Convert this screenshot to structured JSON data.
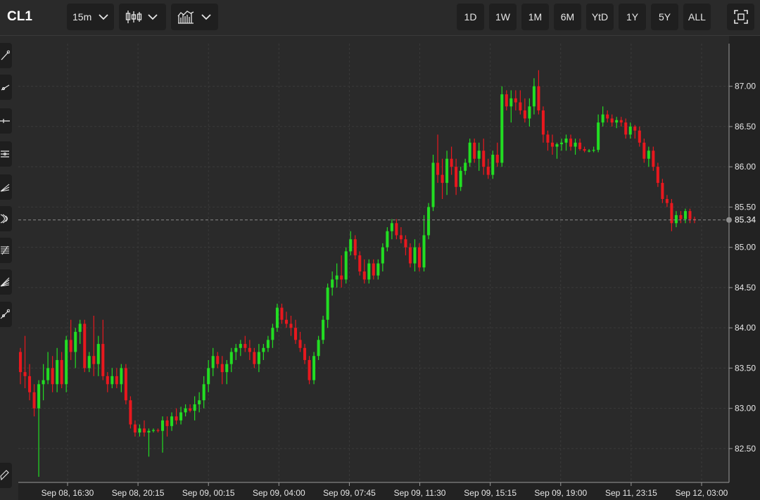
{
  "symbol": "CL1",
  "toolbar": {
    "interval_label": "15m",
    "chart_type_icon": "candlestick-icon",
    "indicators_icon": "indicators-icon",
    "fullscreen_icon": "fullscreen-icon"
  },
  "ranges": [
    "1D",
    "1W",
    "1M",
    "6M",
    "YtD",
    "1Y",
    "5Y",
    "ALL"
  ],
  "drawing_tools": [
    "trend-line-icon",
    "ray-icon",
    "horizontal-line-icon",
    "parallel-channel-icon",
    "pitchfork-icon",
    "fibonacci-arc-icon",
    "fibonacci-retracement-icon",
    "fibonacci-fan-icon",
    "gann-icon",
    "measure-icon"
  ],
  "colors": {
    "up": "#22dd22",
    "down": "#e8181e",
    "background": "#2a2a2a",
    "grid": "#3a3a3a",
    "price_line": "#8a8a8a"
  },
  "chart_data": {
    "type": "candlestick",
    "interval": "15m",
    "last_price": "85.34",
    "y_ticks": [
      "87.00",
      "86.50",
      "86.00",
      "85.50",
      "85.00",
      "84.50",
      "84.00",
      "83.50",
      "83.00",
      "82.50"
    ],
    "x_ticks": [
      "Sep 08, 16:30",
      "Sep 08, 20:15",
      "Sep 09, 00:15",
      "Sep 09, 04:00",
      "Sep 09, 07:45",
      "Sep 09, 11:30",
      "Sep 09, 15:15",
      "Sep 09, 19:00",
      "Sep 11, 23:15",
      "Sep 12, 03:00"
    ],
    "ylim": [
      82.08,
      87.53
    ],
    "candles": [
      [
        83.7,
        83.75,
        83.3,
        83.45
      ],
      [
        83.45,
        83.9,
        83.25,
        83.4
      ],
      [
        83.4,
        83.55,
        83.1,
        83.2
      ],
      [
        83.2,
        83.3,
        82.9,
        83.0
      ],
      [
        83.0,
        83.35,
        82.15,
        83.3
      ],
      [
        83.3,
        83.55,
        83.1,
        83.35
      ],
      [
        83.35,
        83.7,
        83.3,
        83.5
      ],
      [
        83.5,
        83.65,
        83.2,
        83.3
      ],
      [
        83.3,
        83.75,
        83.2,
        83.6
      ],
      [
        83.6,
        83.7,
        83.25,
        83.3
      ],
      [
        83.3,
        83.9,
        83.2,
        83.85
      ],
      [
        83.85,
        84.1,
        83.6,
        83.7
      ],
      [
        83.7,
        84.0,
        83.5,
        83.95
      ],
      [
        83.95,
        84.1,
        83.8,
        84.05
      ],
      [
        84.05,
        84.1,
        83.45,
        83.5
      ],
      [
        83.5,
        83.7,
        83.45,
        83.65
      ],
      [
        83.65,
        84.15,
        83.4,
        83.55
      ],
      [
        83.55,
        83.9,
        83.4,
        83.8
      ],
      [
        83.8,
        84.1,
        83.35,
        83.4
      ],
      [
        83.4,
        83.45,
        83.2,
        83.3
      ],
      [
        83.3,
        83.5,
        83.25,
        83.4
      ],
      [
        83.4,
        83.5,
        83.25,
        83.3
      ],
      [
        83.3,
        83.55,
        83.2,
        83.5
      ],
      [
        83.5,
        83.55,
        83.05,
        83.1
      ],
      [
        83.1,
        83.15,
        82.75,
        82.8
      ],
      [
        82.8,
        82.85,
        82.65,
        82.7
      ],
      [
        82.7,
        82.8,
        82.65,
        82.75
      ],
      [
        82.75,
        82.85,
        82.65,
        82.7
      ],
      [
        82.7,
        82.75,
        82.4,
        82.72
      ],
      [
        82.72,
        82.75,
        82.7,
        82.73
      ],
      [
        82.73,
        82.75,
        82.7,
        82.72
      ],
      [
        82.72,
        82.9,
        82.45,
        82.85
      ],
      [
        82.85,
        82.9,
        82.65,
        82.78
      ],
      [
        82.78,
        82.95,
        82.72,
        82.9
      ],
      [
        82.9,
        83.0,
        82.8,
        82.85
      ],
      [
        82.85,
        83.02,
        82.8,
        82.95
      ],
      [
        82.95,
        83.05,
        82.9,
        83.0
      ],
      [
        83.0,
        83.05,
        82.95,
        82.97
      ],
      [
        82.97,
        83.15,
        82.85,
        83.05
      ],
      [
        83.05,
        83.2,
        82.95,
        83.1
      ],
      [
        83.1,
        83.4,
        83.0,
        83.3
      ],
      [
        83.3,
        83.6,
        83.2,
        83.5
      ],
      [
        83.5,
        83.75,
        83.4,
        83.65
      ],
      [
        83.65,
        83.7,
        83.5,
        83.55
      ],
      [
        83.55,
        83.65,
        83.3,
        83.45
      ],
      [
        83.45,
        83.6,
        83.3,
        83.55
      ],
      [
        83.55,
        83.75,
        83.45,
        83.7
      ],
      [
        83.7,
        83.8,
        83.6,
        83.75
      ],
      [
        83.75,
        83.85,
        83.65,
        83.8
      ],
      [
        83.8,
        83.9,
        83.7,
        83.75
      ],
      [
        83.75,
        83.85,
        83.6,
        83.7
      ],
      [
        83.7,
        83.75,
        83.5,
        83.55
      ],
      [
        83.55,
        83.8,
        83.45,
        83.7
      ],
      [
        83.7,
        83.8,
        83.6,
        83.75
      ],
      [
        83.75,
        83.9,
        83.7,
        83.85
      ],
      [
        83.85,
        84.05,
        83.75,
        84.0
      ],
      [
        84.0,
        84.3,
        83.95,
        84.25
      ],
      [
        84.25,
        84.3,
        84.05,
        84.1
      ],
      [
        84.1,
        84.2,
        84.0,
        84.05
      ],
      [
        84.05,
        84.15,
        83.9,
        84.0
      ],
      [
        84.0,
        84.1,
        83.8,
        83.85
      ],
      [
        83.85,
        83.95,
        83.7,
        83.75
      ],
      [
        83.75,
        83.8,
        83.55,
        83.6
      ],
      [
        83.6,
        83.65,
        83.3,
        83.35
      ],
      [
        83.35,
        83.7,
        83.3,
        83.65
      ],
      [
        83.65,
        83.9,
        83.6,
        83.85
      ],
      [
        83.85,
        84.15,
        83.8,
        84.1
      ],
      [
        84.1,
        84.55,
        84.0,
        84.5
      ],
      [
        84.5,
        84.7,
        84.4,
        84.6
      ],
      [
        84.6,
        84.8,
        84.5,
        84.65
      ],
      [
        84.65,
        84.9,
        84.5,
        84.6
      ],
      [
        84.6,
        85.0,
        84.55,
        84.95
      ],
      [
        84.95,
        85.2,
        84.9,
        85.1
      ],
      [
        85.1,
        85.15,
        84.85,
        84.9
      ],
      [
        84.9,
        84.95,
        84.65,
        84.7
      ],
      [
        84.7,
        84.85,
        84.55,
        84.6
      ],
      [
        84.6,
        84.85,
        84.55,
        84.8
      ],
      [
        84.8,
        84.85,
        84.6,
        84.65
      ],
      [
        84.65,
        84.85,
        84.6,
        84.8
      ],
      [
        84.8,
        85.05,
        84.7,
        85.0
      ],
      [
        85.0,
        85.25,
        84.95,
        85.2
      ],
      [
        85.2,
        85.35,
        85.1,
        85.3
      ],
      [
        85.3,
        85.35,
        85.1,
        85.15
      ],
      [
        85.15,
        85.25,
        85.05,
        85.1
      ],
      [
        85.1,
        85.15,
        84.9,
        85.0
      ],
      [
        85.0,
        85.05,
        84.75,
        84.8
      ],
      [
        84.8,
        85.1,
        84.7,
        85.0
      ],
      [
        85.0,
        85.05,
        84.7,
        84.75
      ],
      [
        84.75,
        85.4,
        84.7,
        85.15
      ],
      [
        85.15,
        85.55,
        85.1,
        85.5
      ],
      [
        85.5,
        86.15,
        85.45,
        86.05
      ],
      [
        86.05,
        86.4,
        85.8,
        85.9
      ],
      [
        85.9,
        86.1,
        85.6,
        85.8
      ],
      [
        85.8,
        86.2,
        85.65,
        86.1
      ],
      [
        86.1,
        86.25,
        85.9,
        86.0
      ],
      [
        86.0,
        86.1,
        85.65,
        85.75
      ],
      [
        85.75,
        86.0,
        85.7,
        85.95
      ],
      [
        85.95,
        86.1,
        85.9,
        86.05
      ],
      [
        86.05,
        86.35,
        86.0,
        86.3
      ],
      [
        86.3,
        86.35,
        86.05,
        86.1
      ],
      [
        86.1,
        86.3,
        85.95,
        86.2
      ],
      [
        86.2,
        86.35,
        85.9,
        86.0
      ],
      [
        86.0,
        86.1,
        85.85,
        85.9
      ],
      [
        85.9,
        86.2,
        85.85,
        86.15
      ],
      [
        86.15,
        86.3,
        86.0,
        86.05
      ],
      [
        86.05,
        87.0,
        86.0,
        86.9
      ],
      [
        86.9,
        86.95,
        86.7,
        86.75
      ],
      [
        86.75,
        86.95,
        86.55,
        86.85
      ],
      [
        86.85,
        86.95,
        86.7,
        86.8
      ],
      [
        86.8,
        86.95,
        86.65,
        86.7
      ],
      [
        86.7,
        86.85,
        86.55,
        86.6
      ],
      [
        86.6,
        86.85,
        86.5,
        86.75
      ],
      [
        86.75,
        87.1,
        86.65,
        87.0
      ],
      [
        87.0,
        87.2,
        86.65,
        86.7
      ],
      [
        86.7,
        86.75,
        86.3,
        86.4
      ],
      [
        86.4,
        86.45,
        86.2,
        86.3
      ],
      [
        86.3,
        86.4,
        86.15,
        86.25
      ],
      [
        86.25,
        86.3,
        86.1,
        86.28
      ],
      [
        86.28,
        86.35,
        86.2,
        86.3
      ],
      [
        86.3,
        86.4,
        86.2,
        86.35
      ],
      [
        86.35,
        86.4,
        86.2,
        86.25
      ],
      [
        86.25,
        86.35,
        86.15,
        86.3
      ],
      [
        86.3,
        86.35,
        86.2,
        86.22
      ],
      [
        86.22,
        86.25,
        86.18,
        86.2
      ],
      [
        86.2,
        86.22,
        86.18,
        86.2
      ],
      [
        86.2,
        86.25,
        86.18,
        86.21
      ],
      [
        86.21,
        86.65,
        86.18,
        86.55
      ],
      [
        86.55,
        86.75,
        86.5,
        86.65
      ],
      [
        86.65,
        86.7,
        86.55,
        86.6
      ],
      [
        86.6,
        86.65,
        86.5,
        86.55
      ],
      [
        86.55,
        86.62,
        86.48,
        86.58
      ],
      [
        86.58,
        86.62,
        86.5,
        86.55
      ],
      [
        86.55,
        86.6,
        86.35,
        86.4
      ],
      [
        86.4,
        86.55,
        86.35,
        86.5
      ],
      [
        86.5,
        86.52,
        86.35,
        86.45
      ],
      [
        86.45,
        86.5,
        86.25,
        86.3
      ],
      [
        86.3,
        86.35,
        86.05,
        86.1
      ],
      [
        86.1,
        86.25,
        86.0,
        86.2
      ],
      [
        86.2,
        86.25,
        85.95,
        86.0
      ],
      [
        86.0,
        86.05,
        85.75,
        85.8
      ],
      [
        85.8,
        85.85,
        85.55,
        85.6
      ],
      [
        85.6,
        85.65,
        85.5,
        85.55
      ],
      [
        85.55,
        85.6,
        85.2,
        85.3
      ],
      [
        85.3,
        85.45,
        85.25,
        85.4
      ],
      [
        85.4,
        85.45,
        85.3,
        85.35
      ],
      [
        85.35,
        85.48,
        85.3,
        85.45
      ],
      [
        85.45,
        85.48,
        85.3,
        85.35
      ],
      [
        85.35,
        85.38,
        85.3,
        85.34
      ]
    ]
  }
}
